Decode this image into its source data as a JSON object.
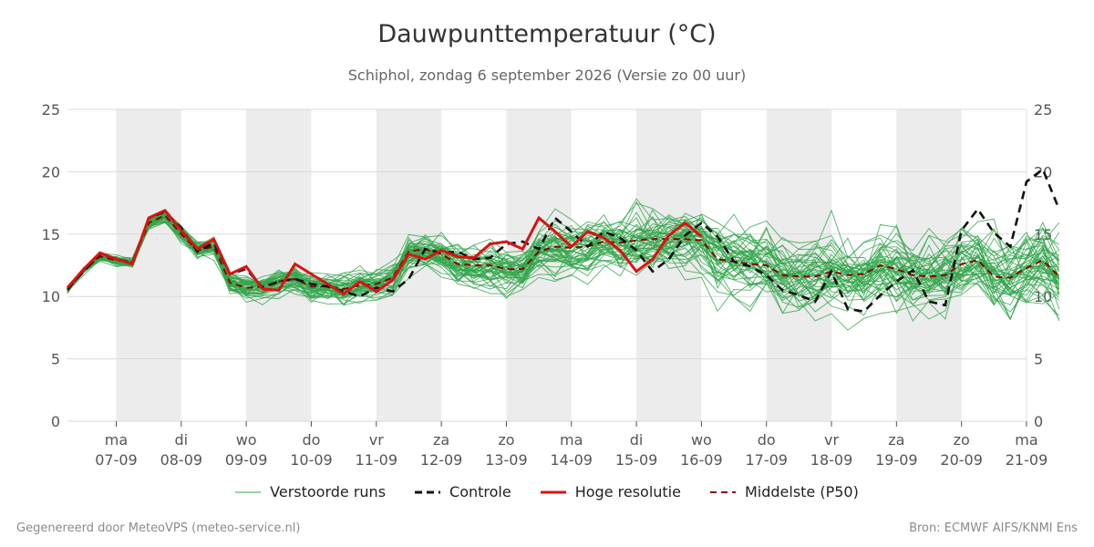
{
  "header": {
    "title": "Dauwpunttemperatuur (°C)",
    "subtitle": "Schiphol, zondag  6 september 2026 (Versie zo 00 uur)"
  },
  "footer": {
    "left": "Gegenereerd door MeteoVPS (meteo-service.nl)",
    "right": "Bron: ECMWF AIFS/KNMI Ens"
  },
  "legend": [
    {
      "label": "Verstoorde runs",
      "color": "#33a64b",
      "style": "thin-solid"
    },
    {
      "label": "Controle",
      "color": "#111111",
      "style": "dashed"
    },
    {
      "label": "Hoge resolutie",
      "color": "#dd1111",
      "style": "thick-solid"
    },
    {
      "label": "Middelste (P50)",
      "color": "#8b0000",
      "style": "dashed"
    }
  ],
  "chart_data": {
    "type": "line",
    "title": "Dauwpunttemperatuur (°C)",
    "ylim": [
      0,
      25
    ],
    "y_ticks": [
      0,
      5,
      10,
      15,
      20,
      25
    ],
    "xlim_days": [
      -0.75,
      14.0
    ],
    "grid": true,
    "weekend_shading": [
      [
        0,
        1
      ],
      [
        2,
        3
      ],
      [
        4,
        5
      ],
      [
        6,
        7
      ],
      [
        8,
        9
      ],
      [
        10,
        11
      ],
      [
        12,
        13
      ]
    ],
    "x_ticks": [
      {
        "day": 0,
        "weekday": "ma",
        "date": "07-09"
      },
      {
        "day": 1,
        "weekday": "di",
        "date": "08-09"
      },
      {
        "day": 2,
        "weekday": "wo",
        "date": "09-09"
      },
      {
        "day": 3,
        "weekday": "do",
        "date": "10-09"
      },
      {
        "day": 4,
        "weekday": "vr",
        "date": "11-09"
      },
      {
        "day": 5,
        "weekday": "za",
        "date": "12-09"
      },
      {
        "day": 6,
        "weekday": "zo",
        "date": "13-09"
      },
      {
        "day": 7,
        "weekday": "ma",
        "date": "14-09"
      },
      {
        "day": 8,
        "weekday": "di",
        "date": "15-09"
      },
      {
        "day": 9,
        "weekday": "wo",
        "date": "16-09"
      },
      {
        "day": 10,
        "weekday": "do",
        "date": "17-09"
      },
      {
        "day": 11,
        "weekday": "vr",
        "date": "18-09"
      },
      {
        "day": 12,
        "weekday": "za",
        "date": "19-09"
      },
      {
        "day": 13,
        "weekday": "zo",
        "date": "20-09"
      },
      {
        "day": 14,
        "weekday": "ma",
        "date": "21-09"
      }
    ],
    "x_step_hours": 6,
    "series": [
      {
        "name": "Controle",
        "color": "#111111",
        "values": [
          10.6,
          12.0,
          13.4,
          13.0,
          12.7,
          16.3,
          16.8,
          15.5,
          13.6,
          14.3,
          11.8,
          12.2,
          10.7,
          11.2,
          11.4,
          11.0,
          10.8,
          10.4,
          10.0,
          10.7,
          10.4,
          11.4,
          13.8,
          13.5,
          13.6,
          13.0,
          13.1,
          14.2,
          14.4,
          13.8,
          16.3,
          15.2,
          14.0,
          15.2,
          14.7,
          13.7,
          12.0,
          13.0,
          14.9,
          15.9,
          14.8,
          12.8,
          12.4,
          11.7,
          10.5,
          10.1,
          9.6,
          12.0,
          9.0,
          8.8,
          10.1,
          11.2,
          12.1,
          9.6,
          9.3,
          15.3,
          17.0,
          15.1,
          14.0,
          19.2,
          20.2,
          17.0
        ]
      },
      {
        "name": "Hoge resolutie",
        "color": "#dd1111",
        "values": [
          10.7,
          12.2,
          13.5,
          13.0,
          12.6,
          16.3,
          16.9,
          15.3,
          13.8,
          14.6,
          11.8,
          12.4,
          10.6,
          10.5,
          12.6,
          11.8,
          11.0,
          10.2,
          11.2,
          10.4,
          11.3,
          13.4,
          13.0,
          13.7,
          13.2,
          13.1,
          14.2,
          14.4,
          13.8,
          16.3,
          15.2,
          14.0,
          15.2,
          14.7,
          13.7,
          12.0,
          13.0,
          14.9,
          15.9,
          14.8
        ]
      },
      {
        "name": "Middelste (P50)",
        "color": "#8b0000",
        "values": [
          10.5,
          12.1,
          13.2,
          12.9,
          12.7,
          15.9,
          16.5,
          15.0,
          13.7,
          14.0,
          11.1,
          10.7,
          10.8,
          11.2,
          11.4,
          10.8,
          10.8,
          10.6,
          10.9,
          11.0,
          11.5,
          13.6,
          13.8,
          13.4,
          12.6,
          12.5,
          12.5,
          12.2,
          12.2,
          13.6,
          14.0,
          13.9,
          14.0,
          14.4,
          14.3,
          14.5,
          14.6,
          14.6,
          14.6,
          14.5,
          13.0,
          12.8,
          12.6,
          12.5,
          11.7,
          11.6,
          11.6,
          12.0,
          11.7,
          11.8,
          12.5,
          12.2,
          11.7,
          11.6,
          11.7,
          12.6,
          12.9,
          11.6,
          11.5,
          12.3,
          12.9,
          11.6
        ]
      }
    ],
    "ensemble_member_count": 50
  }
}
